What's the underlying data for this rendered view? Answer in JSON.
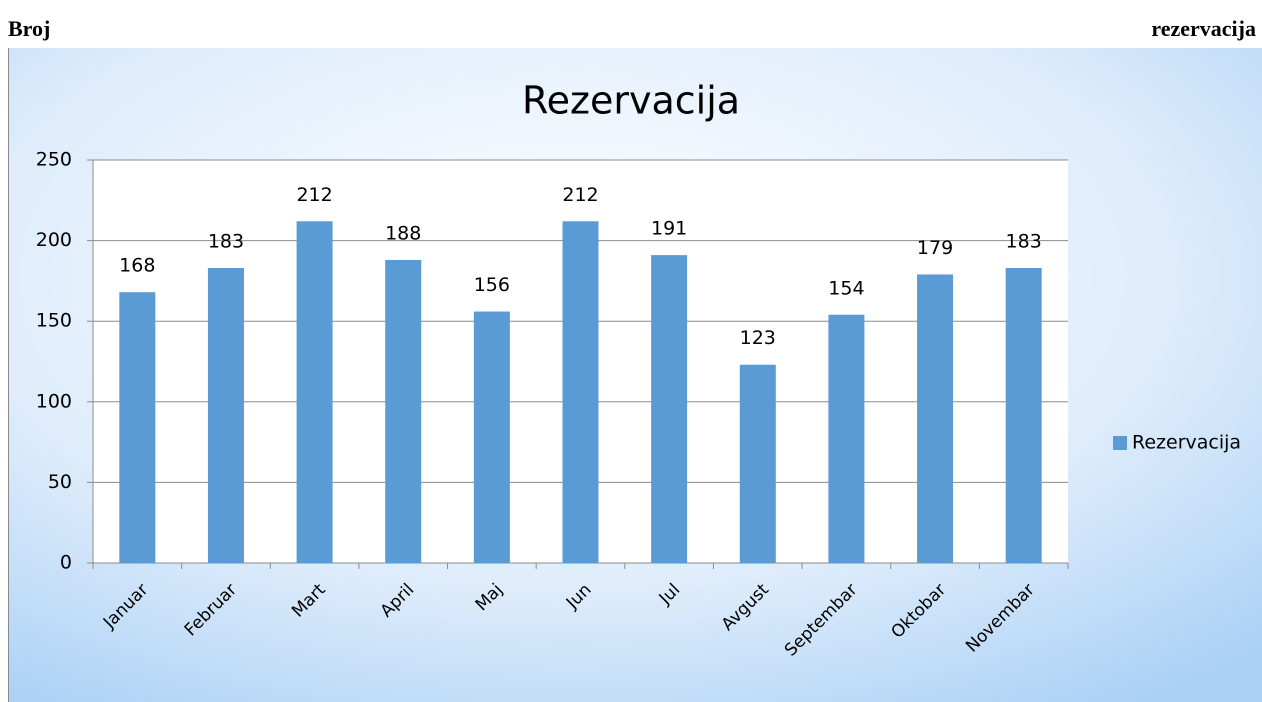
{
  "header": {
    "left": "Broj",
    "right": "rezervacija"
  },
  "chart_data": {
    "type": "bar",
    "title": "Rezervacija",
    "categories": [
      "Januar",
      "Februar",
      "Mart",
      "April",
      "Maj",
      "Jun",
      "Jul",
      "Avgust",
      "Septembar",
      "Oktobar",
      "Novembar"
    ],
    "series": [
      {
        "name": "Rezervacija",
        "color": "#5b9bd5",
        "values": [
          168,
          183,
          212,
          188,
          156,
          212,
          191,
          123,
          154,
          179,
          183
        ]
      }
    ],
    "ylim": [
      0,
      250
    ],
    "yticks": [
      0,
      50,
      100,
      150,
      200,
      250
    ],
    "grid": true,
    "legend": "right"
  }
}
